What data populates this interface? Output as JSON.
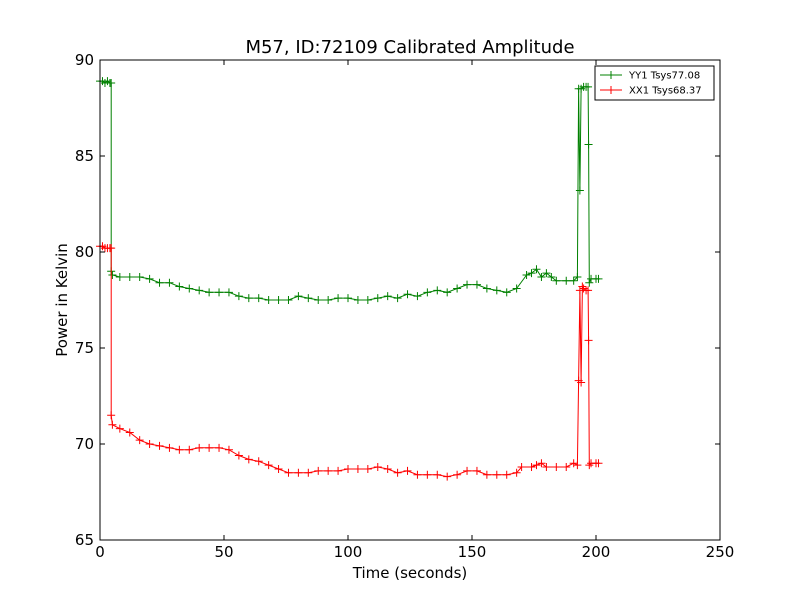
{
  "chart_data": {
    "type": "line",
    "title": "M57, ID:72109 Calibrated Amplitude",
    "xlabel": "Time (seconds)",
    "ylabel": "Power in Kelvin",
    "xlim": [
      0,
      250
    ],
    "ylim": [
      65,
      90
    ],
    "xticks": [
      0,
      50,
      100,
      150,
      200,
      250
    ],
    "yticks": [
      65,
      70,
      75,
      80,
      85,
      90
    ],
    "grid": false,
    "legend_position": "top-right",
    "marker": "+",
    "series": [
      {
        "name": "YY1 Tsys77.08",
        "color": "#008000",
        "points": [
          [
            0,
            88.9
          ],
          [
            1,
            88.9
          ],
          [
            2,
            88.8
          ],
          [
            3,
            88.9
          ],
          [
            4,
            88.8
          ],
          [
            4.5,
            88.8
          ],
          [
            4.5,
            79.0
          ],
          [
            5,
            78.8
          ],
          [
            8,
            78.7
          ],
          [
            12,
            78.7
          ],
          [
            16,
            78.7
          ],
          [
            20,
            78.6
          ],
          [
            24,
            78.4
          ],
          [
            28,
            78.4
          ],
          [
            32,
            78.2
          ],
          [
            36,
            78.1
          ],
          [
            40,
            78.0
          ],
          [
            44,
            77.9
          ],
          [
            48,
            77.9
          ],
          [
            52,
            77.9
          ],
          [
            56,
            77.7
          ],
          [
            60,
            77.6
          ],
          [
            64,
            77.6
          ],
          [
            68,
            77.5
          ],
          [
            72,
            77.5
          ],
          [
            76,
            77.5
          ],
          [
            80,
            77.7
          ],
          [
            84,
            77.6
          ],
          [
            88,
            77.5
          ],
          [
            92,
            77.5
          ],
          [
            96,
            77.6
          ],
          [
            100,
            77.6
          ],
          [
            104,
            77.5
          ],
          [
            108,
            77.5
          ],
          [
            112,
            77.6
          ],
          [
            116,
            77.7
          ],
          [
            120,
            77.6
          ],
          [
            124,
            77.8
          ],
          [
            128,
            77.7
          ],
          [
            132,
            77.9
          ],
          [
            136,
            78.0
          ],
          [
            140,
            77.9
          ],
          [
            144,
            78.1
          ],
          [
            148,
            78.3
          ],
          [
            152,
            78.3
          ],
          [
            156,
            78.1
          ],
          [
            160,
            78.0
          ],
          [
            164,
            77.9
          ],
          [
            168,
            78.1
          ],
          [
            172,
            78.8
          ],
          [
            174,
            78.9
          ],
          [
            176,
            79.1
          ],
          [
            178,
            78.7
          ],
          [
            180,
            78.9
          ],
          [
            182,
            78.7
          ],
          [
            184,
            78.5
          ],
          [
            188,
            78.5
          ],
          [
            191,
            78.5
          ],
          [
            192.5,
            78.7
          ],
          [
            193,
            88.5
          ],
          [
            193.5,
            83.2
          ],
          [
            194,
            88.5
          ],
          [
            195,
            88.6
          ],
          [
            196,
            88.6
          ],
          [
            196.8,
            88.6
          ],
          [
            197,
            85.6
          ],
          [
            197.3,
            78.4
          ],
          [
            198,
            78.6
          ],
          [
            200,
            78.6
          ],
          [
            201,
            78.6
          ]
        ]
      },
      {
        "name": "XX1 Tsys68.37",
        "color": "#ff0000",
        "points": [
          [
            0,
            80.3
          ],
          [
            1,
            80.3
          ],
          [
            2,
            80.2
          ],
          [
            3,
            80.2
          ],
          [
            4,
            80.2
          ],
          [
            4.5,
            80.2
          ],
          [
            4.5,
            71.5
          ],
          [
            5,
            71.0
          ],
          [
            8,
            70.8
          ],
          [
            12,
            70.6
          ],
          [
            16,
            70.2
          ],
          [
            20,
            70.0
          ],
          [
            24,
            69.9
          ],
          [
            28,
            69.8
          ],
          [
            32,
            69.7
          ],
          [
            36,
            69.7
          ],
          [
            40,
            69.8
          ],
          [
            44,
            69.8
          ],
          [
            48,
            69.8
          ],
          [
            52,
            69.7
          ],
          [
            56,
            69.4
          ],
          [
            60,
            69.2
          ],
          [
            64,
            69.1
          ],
          [
            68,
            68.9
          ],
          [
            72,
            68.7
          ],
          [
            76,
            68.5
          ],
          [
            80,
            68.5
          ],
          [
            84,
            68.5
          ],
          [
            88,
            68.6
          ],
          [
            92,
            68.6
          ],
          [
            96,
            68.6
          ],
          [
            100,
            68.7
          ],
          [
            104,
            68.7
          ],
          [
            108,
            68.7
          ],
          [
            112,
            68.8
          ],
          [
            116,
            68.7
          ],
          [
            120,
            68.5
          ],
          [
            124,
            68.6
          ],
          [
            128,
            68.4
          ],
          [
            132,
            68.4
          ],
          [
            136,
            68.4
          ],
          [
            140,
            68.3
          ],
          [
            144,
            68.4
          ],
          [
            148,
            68.6
          ],
          [
            152,
            68.6
          ],
          [
            156,
            68.4
          ],
          [
            160,
            68.4
          ],
          [
            164,
            68.4
          ],
          [
            168,
            68.5
          ],
          [
            170,
            68.8
          ],
          [
            174,
            68.8
          ],
          [
            176,
            68.9
          ],
          [
            178,
            69.0
          ],
          [
            180,
            68.8
          ],
          [
            184,
            68.8
          ],
          [
            188,
            68.8
          ],
          [
            191,
            69.0
          ],
          [
            192.5,
            68.9
          ],
          [
            193,
            73.3
          ],
          [
            193.5,
            78.0
          ],
          [
            194,
            73.2
          ],
          [
            194.5,
            78.2
          ],
          [
            195,
            78.1
          ],
          [
            196,
            78.0
          ],
          [
            196.8,
            78.0
          ],
          [
            197,
            75.4
          ],
          [
            197.3,
            68.9
          ],
          [
            198,
            69.0
          ],
          [
            200,
            69.0
          ],
          [
            201,
            69.0
          ]
        ]
      }
    ]
  }
}
